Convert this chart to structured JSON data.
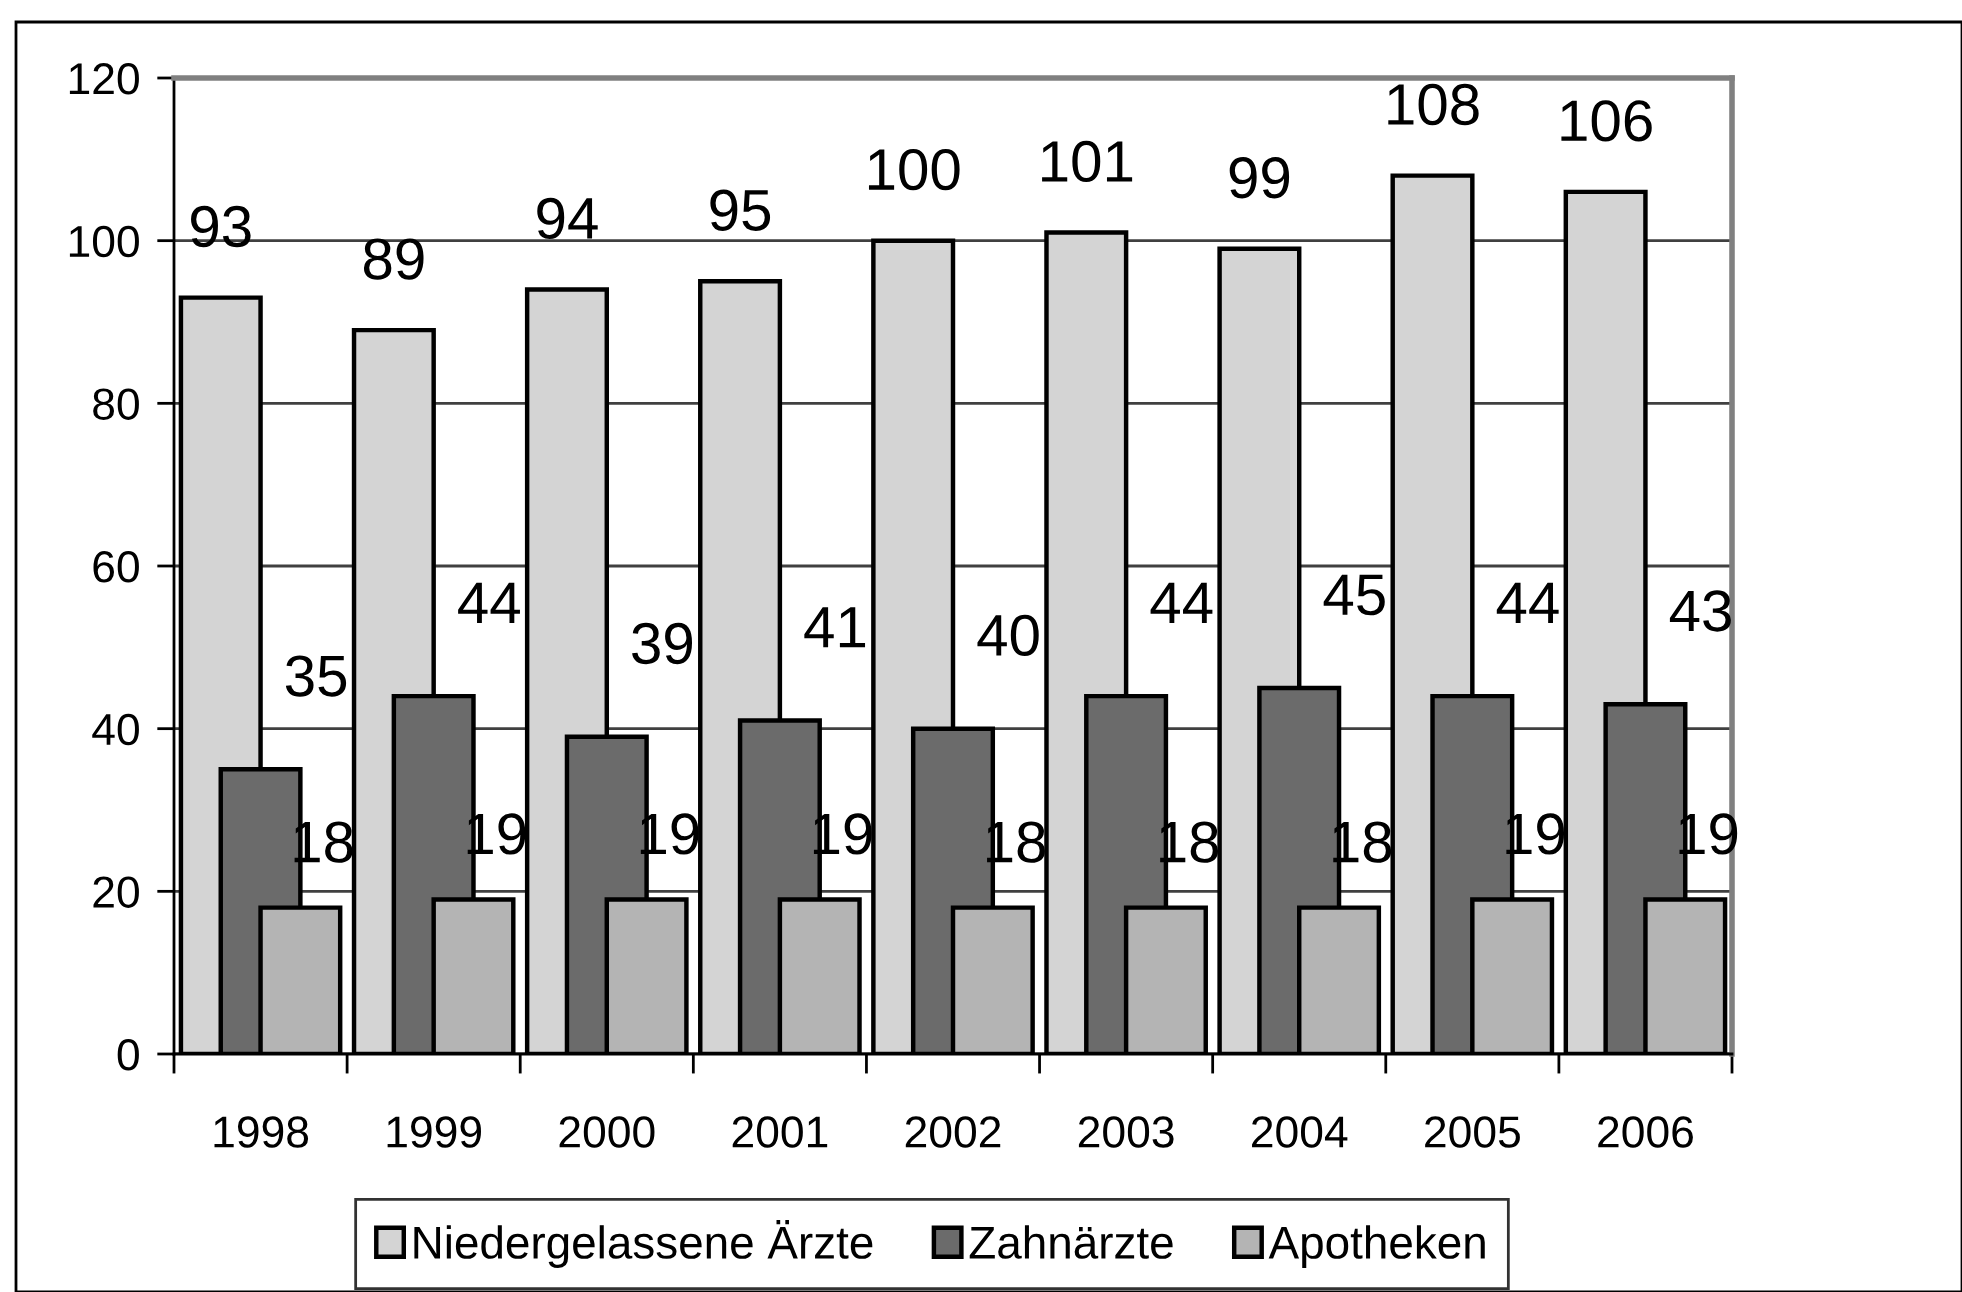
{
  "chart_data": {
    "type": "bar",
    "categories": [
      "1998",
      "1999",
      "2000",
      "2001",
      "2002",
      "2003",
      "2004",
      "2005",
      "2006"
    ],
    "series": [
      {
        "name": "Niedergelassene Ärzte",
        "color": "#d4d4d4",
        "values": [
          93,
          89,
          94,
          95,
          100,
          101,
          99,
          108,
          106
        ]
      },
      {
        "name": "Zahnärzte",
        "color": "#6b6b6b",
        "values": [
          35,
          44,
          39,
          41,
          40,
          44,
          45,
          44,
          43
        ]
      },
      {
        "name": "Apotheken",
        "color": "#b4b4b4",
        "values": [
          18,
          19,
          19,
          19,
          18,
          18,
          18,
          19,
          19
        ]
      }
    ],
    "ylim": [
      0,
      120
    ],
    "yticks": [
      0,
      20,
      40,
      60,
      80,
      100,
      120
    ],
    "grid": "y",
    "legend": "bottom",
    "data_labels": true
  }
}
